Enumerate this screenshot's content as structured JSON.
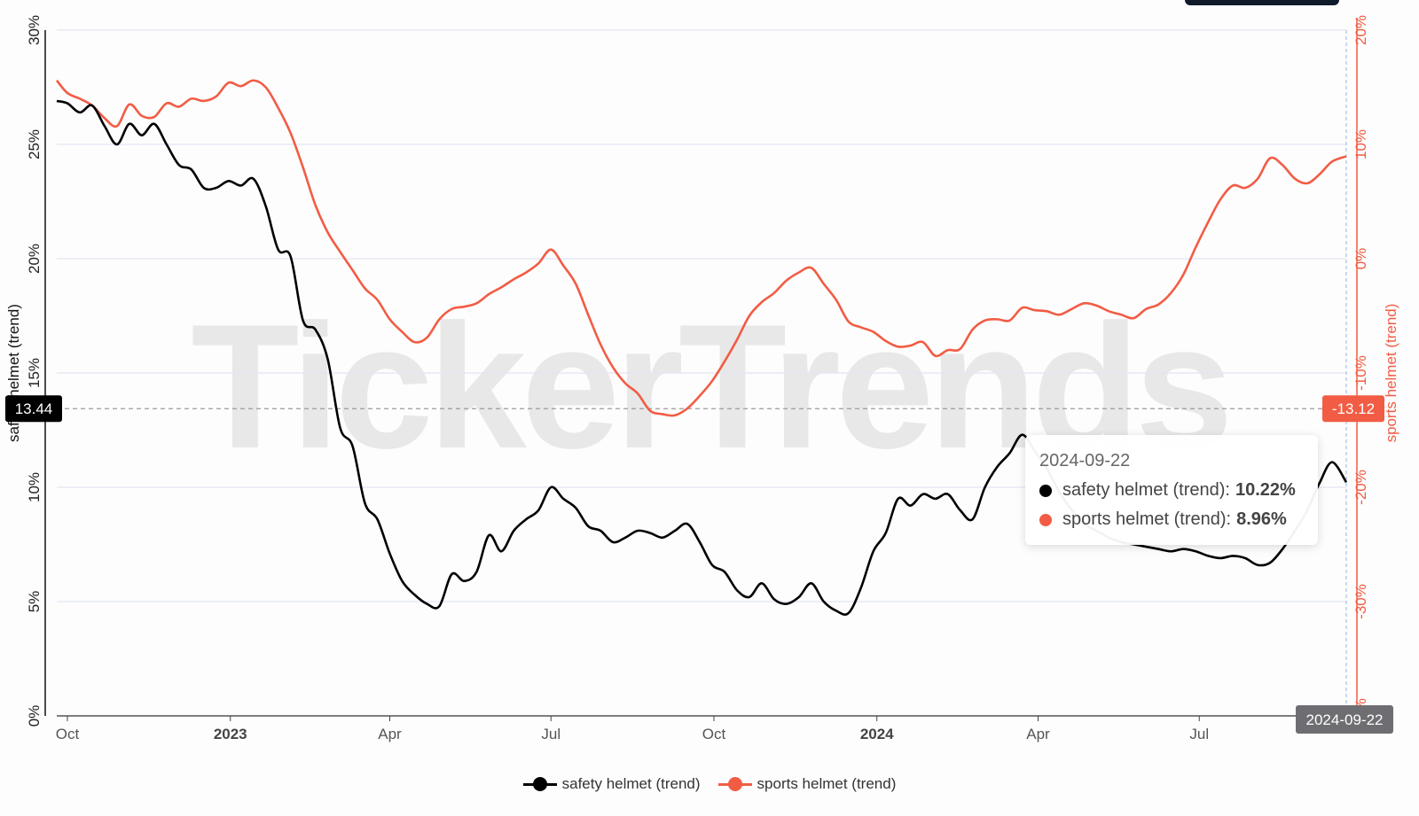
{
  "chart_data": {
    "type": "line",
    "watermark": "TickerTrends",
    "x_ticks": [
      {
        "date": "2022-10-01",
        "label": "Oct",
        "bold": false
      },
      {
        "date": "2023-01-01",
        "label": "2023",
        "bold": true
      },
      {
        "date": "2023-04-01",
        "label": "Apr",
        "bold": false
      },
      {
        "date": "2023-07-01",
        "label": "Jul",
        "bold": false
      },
      {
        "date": "2023-10-01",
        "label": "Oct",
        "bold": false
      },
      {
        "date": "2024-01-01",
        "label": "2024",
        "bold": true
      },
      {
        "date": "2024-04-01",
        "label": "Apr",
        "bold": false
      },
      {
        "date": "2024-07-01",
        "label": "Jul",
        "bold": false
      }
    ],
    "x_range": [
      "2022-09-25",
      "2024-09-22"
    ],
    "y_left": {
      "label": "safety helmet  (trend)",
      "min": 0,
      "max": 30,
      "ticks": [
        "0%",
        "5%",
        "10%",
        "15%",
        "20%",
        "25%",
        "30%"
      ],
      "color": "#000000"
    },
    "y_right": {
      "label": "sports helmet  (trend)",
      "min": -40,
      "max": 20,
      "ticks": [
        "-40%",
        "-30%",
        "-20%",
        "-10%",
        "0%",
        "10%",
        "20%"
      ],
      "color": "#f25c44"
    },
    "series": [
      {
        "name": "safety helmet  (trend)",
        "axis": "left",
        "color": "#000000",
        "points": [
          [
            "2022-09-25",
            26.9
          ],
          [
            "2022-10-01",
            26.8
          ],
          [
            "2022-10-08",
            26.4
          ],
          [
            "2022-10-15",
            26.7
          ],
          [
            "2022-10-22",
            25.8
          ],
          [
            "2022-10-29",
            25.0
          ],
          [
            "2022-11-05",
            25.9
          ],
          [
            "2022-11-12",
            25.4
          ],
          [
            "2022-11-19",
            25.9
          ],
          [
            "2022-11-26",
            25.0
          ],
          [
            "2022-12-03",
            24.1
          ],
          [
            "2022-12-10",
            23.9
          ],
          [
            "2022-12-17",
            23.1
          ],
          [
            "2022-12-24",
            23.1
          ],
          [
            "2022-12-31",
            23.4
          ],
          [
            "2023-01-07",
            23.2
          ],
          [
            "2023-01-14",
            23.5
          ],
          [
            "2023-01-21",
            22.3
          ],
          [
            "2023-01-28",
            20.4
          ],
          [
            "2023-02-04",
            20.1
          ],
          [
            "2023-02-11",
            17.3
          ],
          [
            "2023-02-18",
            16.9
          ],
          [
            "2023-02-25",
            15.6
          ],
          [
            "2023-03-04",
            12.6
          ],
          [
            "2023-03-11",
            11.8
          ],
          [
            "2023-03-18",
            9.3
          ],
          [
            "2023-03-25",
            8.6
          ],
          [
            "2023-04-01",
            7.1
          ],
          [
            "2023-04-08",
            5.9
          ],
          [
            "2023-04-15",
            5.3
          ],
          [
            "2023-04-22",
            4.9
          ],
          [
            "2023-04-29",
            4.8
          ],
          [
            "2023-05-06",
            6.2
          ],
          [
            "2023-05-13",
            5.9
          ],
          [
            "2023-05-20",
            6.3
          ],
          [
            "2023-05-27",
            7.9
          ],
          [
            "2023-06-03",
            7.2
          ],
          [
            "2023-06-10",
            8.1
          ],
          [
            "2023-06-17",
            8.6
          ],
          [
            "2023-06-24",
            9.0
          ],
          [
            "2023-07-01",
            10.0
          ],
          [
            "2023-07-08",
            9.5
          ],
          [
            "2023-07-15",
            9.1
          ],
          [
            "2023-07-22",
            8.3
          ],
          [
            "2023-07-29",
            8.1
          ],
          [
            "2023-08-05",
            7.6
          ],
          [
            "2023-08-12",
            7.8
          ],
          [
            "2023-08-19",
            8.1
          ],
          [
            "2023-08-26",
            8.0
          ],
          [
            "2023-09-02",
            7.8
          ],
          [
            "2023-09-09",
            8.1
          ],
          [
            "2023-09-16",
            8.4
          ],
          [
            "2023-09-23",
            7.6
          ],
          [
            "2023-09-30",
            6.6
          ],
          [
            "2023-10-07",
            6.3
          ],
          [
            "2023-10-14",
            5.5
          ],
          [
            "2023-10-21",
            5.2
          ],
          [
            "2023-10-28",
            5.8
          ],
          [
            "2023-11-04",
            5.1
          ],
          [
            "2023-11-11",
            4.9
          ],
          [
            "2023-11-18",
            5.2
          ],
          [
            "2023-11-25",
            5.8
          ],
          [
            "2023-12-02",
            5.0
          ],
          [
            "2023-12-09",
            4.6
          ],
          [
            "2023-12-16",
            4.5
          ],
          [
            "2023-12-23",
            5.6
          ],
          [
            "2023-12-30",
            7.2
          ],
          [
            "2024-01-06",
            8.0
          ],
          [
            "2024-01-13",
            9.5
          ],
          [
            "2024-01-20",
            9.2
          ],
          [
            "2024-01-27",
            9.7
          ],
          [
            "2024-02-03",
            9.5
          ],
          [
            "2024-02-10",
            9.7
          ],
          [
            "2024-02-17",
            9.0
          ],
          [
            "2024-02-24",
            8.6
          ],
          [
            "2024-03-02",
            10.0
          ],
          [
            "2024-03-09",
            10.9
          ],
          [
            "2024-03-16",
            11.5
          ],
          [
            "2024-03-23",
            12.3
          ],
          [
            "2024-03-30",
            11.6
          ],
          [
            "2024-04-06",
            10.8
          ],
          [
            "2024-04-13",
            9.8
          ],
          [
            "2024-04-20",
            9.0
          ],
          [
            "2024-04-27",
            8.4
          ],
          [
            "2024-05-04",
            8.1
          ],
          [
            "2024-05-11",
            7.8
          ],
          [
            "2024-05-18",
            7.6
          ],
          [
            "2024-05-25",
            7.5
          ],
          [
            "2024-06-01",
            7.4
          ],
          [
            "2024-06-08",
            7.3
          ],
          [
            "2024-06-15",
            7.2
          ],
          [
            "2024-06-22",
            7.3
          ],
          [
            "2024-06-29",
            7.2
          ],
          [
            "2024-07-06",
            7.0
          ],
          [
            "2024-07-13",
            6.9
          ],
          [
            "2024-07-20",
            7.0
          ],
          [
            "2024-07-27",
            6.9
          ],
          [
            "2024-08-03",
            6.6
          ],
          [
            "2024-08-10",
            6.7
          ],
          [
            "2024-08-17",
            7.3
          ],
          [
            "2024-08-24",
            8.1
          ],
          [
            "2024-08-31",
            9.0
          ],
          [
            "2024-09-07",
            10.2
          ],
          [
            "2024-09-14",
            11.1
          ],
          [
            "2024-09-22",
            10.22
          ]
        ]
      },
      {
        "name": "sports helmet  (trend)",
        "axis": "right",
        "color": "#f25c44",
        "points": [
          [
            "2022-09-25",
            15.6
          ],
          [
            "2022-10-01",
            14.5
          ],
          [
            "2022-10-08",
            14.0
          ],
          [
            "2022-10-15",
            13.4
          ],
          [
            "2022-10-22",
            12.3
          ],
          [
            "2022-10-29",
            11.6
          ],
          [
            "2022-11-05",
            13.5
          ],
          [
            "2022-11-12",
            12.5
          ],
          [
            "2022-11-19",
            12.4
          ],
          [
            "2022-11-26",
            13.6
          ],
          [
            "2022-12-03",
            13.3
          ],
          [
            "2022-12-10",
            14.0
          ],
          [
            "2022-12-17",
            13.8
          ],
          [
            "2022-12-24",
            14.2
          ],
          [
            "2022-12-31",
            15.4
          ],
          [
            "2023-01-07",
            15.1
          ],
          [
            "2023-01-14",
            15.6
          ],
          [
            "2023-01-21",
            15.0
          ],
          [
            "2023-01-28",
            13.2
          ],
          [
            "2023-02-04",
            11.0
          ],
          [
            "2023-02-11",
            8.0
          ],
          [
            "2023-02-18",
            4.7
          ],
          [
            "2023-02-25",
            2.3
          ],
          [
            "2023-03-04",
            0.6
          ],
          [
            "2023-03-11",
            -1.0
          ],
          [
            "2023-03-18",
            -2.6
          ],
          [
            "2023-03-25",
            -3.6
          ],
          [
            "2023-04-01",
            -5.3
          ],
          [
            "2023-04-08",
            -6.4
          ],
          [
            "2023-04-15",
            -7.3
          ],
          [
            "2023-04-22",
            -6.9
          ],
          [
            "2023-04-29",
            -5.3
          ],
          [
            "2023-05-06",
            -4.4
          ],
          [
            "2023-05-13",
            -4.2
          ],
          [
            "2023-05-20",
            -3.9
          ],
          [
            "2023-05-27",
            -3.1
          ],
          [
            "2023-06-03",
            -2.5
          ],
          [
            "2023-06-10",
            -1.8
          ],
          [
            "2023-06-17",
            -1.2
          ],
          [
            "2023-06-24",
            -0.4
          ],
          [
            "2023-07-01",
            0.8
          ],
          [
            "2023-07-08",
            -0.6
          ],
          [
            "2023-07-15",
            -2.2
          ],
          [
            "2023-07-22",
            -4.9
          ],
          [
            "2023-07-29",
            -7.5
          ],
          [
            "2023-08-05",
            -9.5
          ],
          [
            "2023-08-12",
            -10.9
          ],
          [
            "2023-08-19",
            -11.8
          ],
          [
            "2023-08-26",
            -13.3
          ],
          [
            "2023-09-02",
            -13.6
          ],
          [
            "2023-09-09",
            -13.7
          ],
          [
            "2023-09-16",
            -13.1
          ],
          [
            "2023-09-23",
            -12.0
          ],
          [
            "2023-09-30",
            -10.7
          ],
          [
            "2023-10-07",
            -9.0
          ],
          [
            "2023-10-14",
            -7.1
          ],
          [
            "2023-10-21",
            -5.0
          ],
          [
            "2023-10-28",
            -3.8
          ],
          [
            "2023-11-04",
            -3.0
          ],
          [
            "2023-11-11",
            -1.9
          ],
          [
            "2023-11-18",
            -1.2
          ],
          [
            "2023-11-25",
            -0.8
          ],
          [
            "2023-12-02",
            -2.2
          ],
          [
            "2023-12-09",
            -3.6
          ],
          [
            "2023-12-16",
            -5.5
          ],
          [
            "2023-12-23",
            -6.0
          ],
          [
            "2023-12-30",
            -6.4
          ],
          [
            "2024-01-06",
            -7.2
          ],
          [
            "2024-01-13",
            -7.7
          ],
          [
            "2024-01-20",
            -7.6
          ],
          [
            "2024-01-27",
            -7.3
          ],
          [
            "2024-02-03",
            -8.5
          ],
          [
            "2024-02-10",
            -8.0
          ],
          [
            "2024-02-17",
            -7.9
          ],
          [
            "2024-02-24",
            -6.2
          ],
          [
            "2024-03-02",
            -5.4
          ],
          [
            "2024-03-09",
            -5.3
          ],
          [
            "2024-03-16",
            -5.4
          ],
          [
            "2024-03-23",
            -4.3
          ],
          [
            "2024-03-30",
            -4.5
          ],
          [
            "2024-04-06",
            -4.6
          ],
          [
            "2024-04-13",
            -4.9
          ],
          [
            "2024-04-20",
            -4.4
          ],
          [
            "2024-04-27",
            -3.9
          ],
          [
            "2024-05-04",
            -4.1
          ],
          [
            "2024-05-11",
            -4.6
          ],
          [
            "2024-05-18",
            -4.9
          ],
          [
            "2024-05-25",
            -5.2
          ],
          [
            "2024-06-01",
            -4.4
          ],
          [
            "2024-06-08",
            -4.0
          ],
          [
            "2024-06-15",
            -3.0
          ],
          [
            "2024-06-22",
            -1.4
          ],
          [
            "2024-06-29",
            1.0
          ],
          [
            "2024-07-06",
            3.2
          ],
          [
            "2024-07-13",
            5.2
          ],
          [
            "2024-07-20",
            6.4
          ],
          [
            "2024-07-27",
            6.2
          ],
          [
            "2024-08-03",
            7.0
          ],
          [
            "2024-08-10",
            8.8
          ],
          [
            "2024-08-17",
            8.2
          ],
          [
            "2024-08-24",
            7.0
          ],
          [
            "2024-08-31",
            6.6
          ],
          [
            "2024-09-07",
            7.4
          ],
          [
            "2024-09-14",
            8.5
          ],
          [
            "2024-09-22",
            8.96
          ]
        ]
      }
    ],
    "crosshair": {
      "date_label": "2024-09-22",
      "left_value_label": "13.44",
      "right_value_label": "-13.12"
    },
    "tooltip": {
      "date": "2024-09-22",
      "rows": [
        {
          "name": "safety helmet (trend):",
          "value": "10.22%",
          "color": "#000000"
        },
        {
          "name": "sports helmet (trend):",
          "value": "8.96%",
          "color": "#f25c44"
        }
      ]
    },
    "legend": {
      "position": "bottom",
      "items": [
        {
          "label": "safety helmet  (trend)",
          "color": "#000000"
        },
        {
          "label": "sports helmet  (trend)",
          "color": "#f25c44"
        }
      ]
    },
    "grid": true
  }
}
